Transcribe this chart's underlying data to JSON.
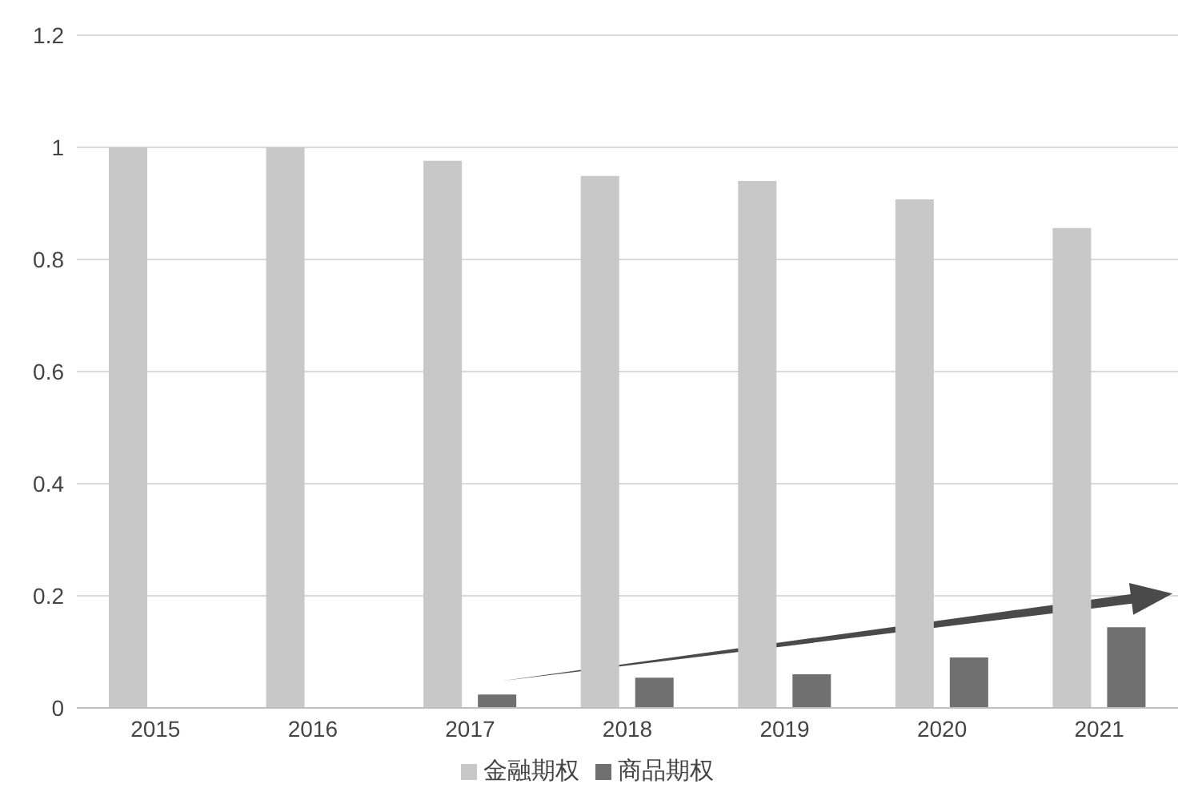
{
  "chart_data": {
    "type": "bar",
    "categories": [
      "2015",
      "2016",
      "2017",
      "2018",
      "2019",
      "2020",
      "2021"
    ],
    "series": [
      {
        "name": "金融期权",
        "color": "#c8c8c8",
        "values": [
          1.0,
          1.0,
          0.976,
          0.949,
          0.94,
          0.907,
          0.856
        ]
      },
      {
        "name": "商品期权",
        "color": "#707070",
        "values": [
          0,
          0,
          0.024,
          0.054,
          0.06,
          0.09,
          0.144
        ]
      }
    ],
    "ylim": [
      0,
      1.2
    ],
    "yticks": [
      0,
      0.2,
      0.4,
      0.6,
      0.8,
      1,
      1.2
    ],
    "grid": "y",
    "legend": "bottom"
  }
}
